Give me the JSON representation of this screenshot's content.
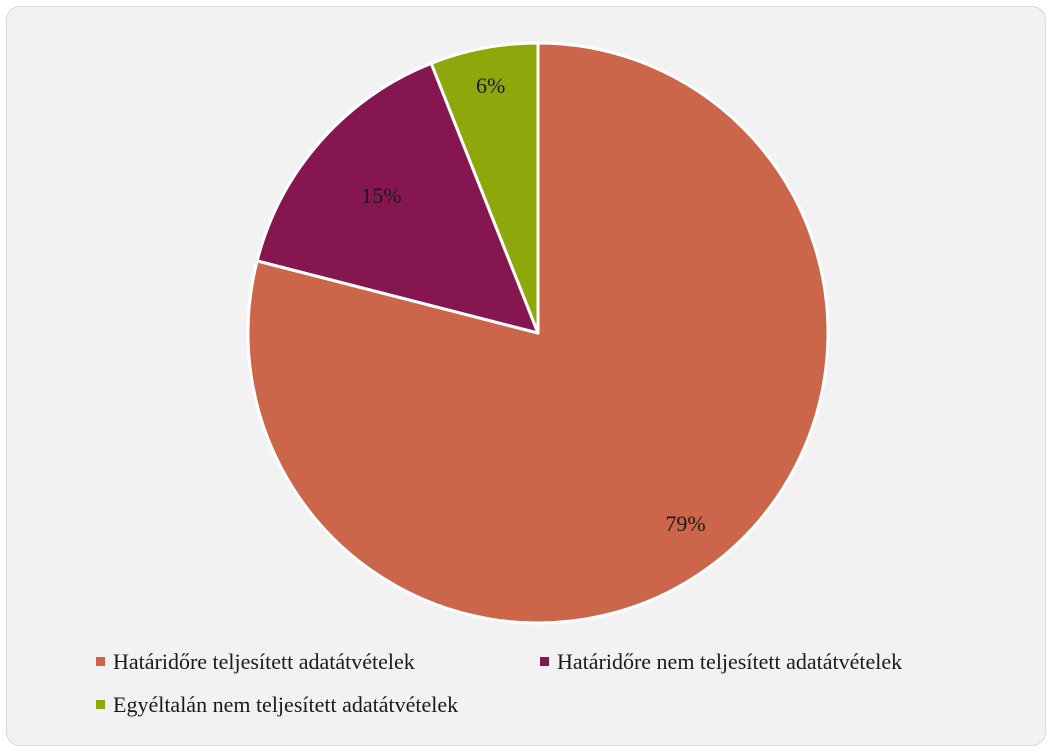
{
  "chart_data": {
    "type": "pie",
    "title": "",
    "categories": [
      "Határidőre teljesített adatátvételek",
      "Határidőre nem teljesített adatátvételek",
      "Egyéltalán nem teljesített adatátvételek"
    ],
    "values": [
      79,
      15,
      6
    ],
    "labels": [
      "79%",
      "15%",
      "6%"
    ],
    "colors": [
      "#cb664b",
      "#86164f",
      "#8ea80b"
    ],
    "legend_position": "bottom"
  }
}
